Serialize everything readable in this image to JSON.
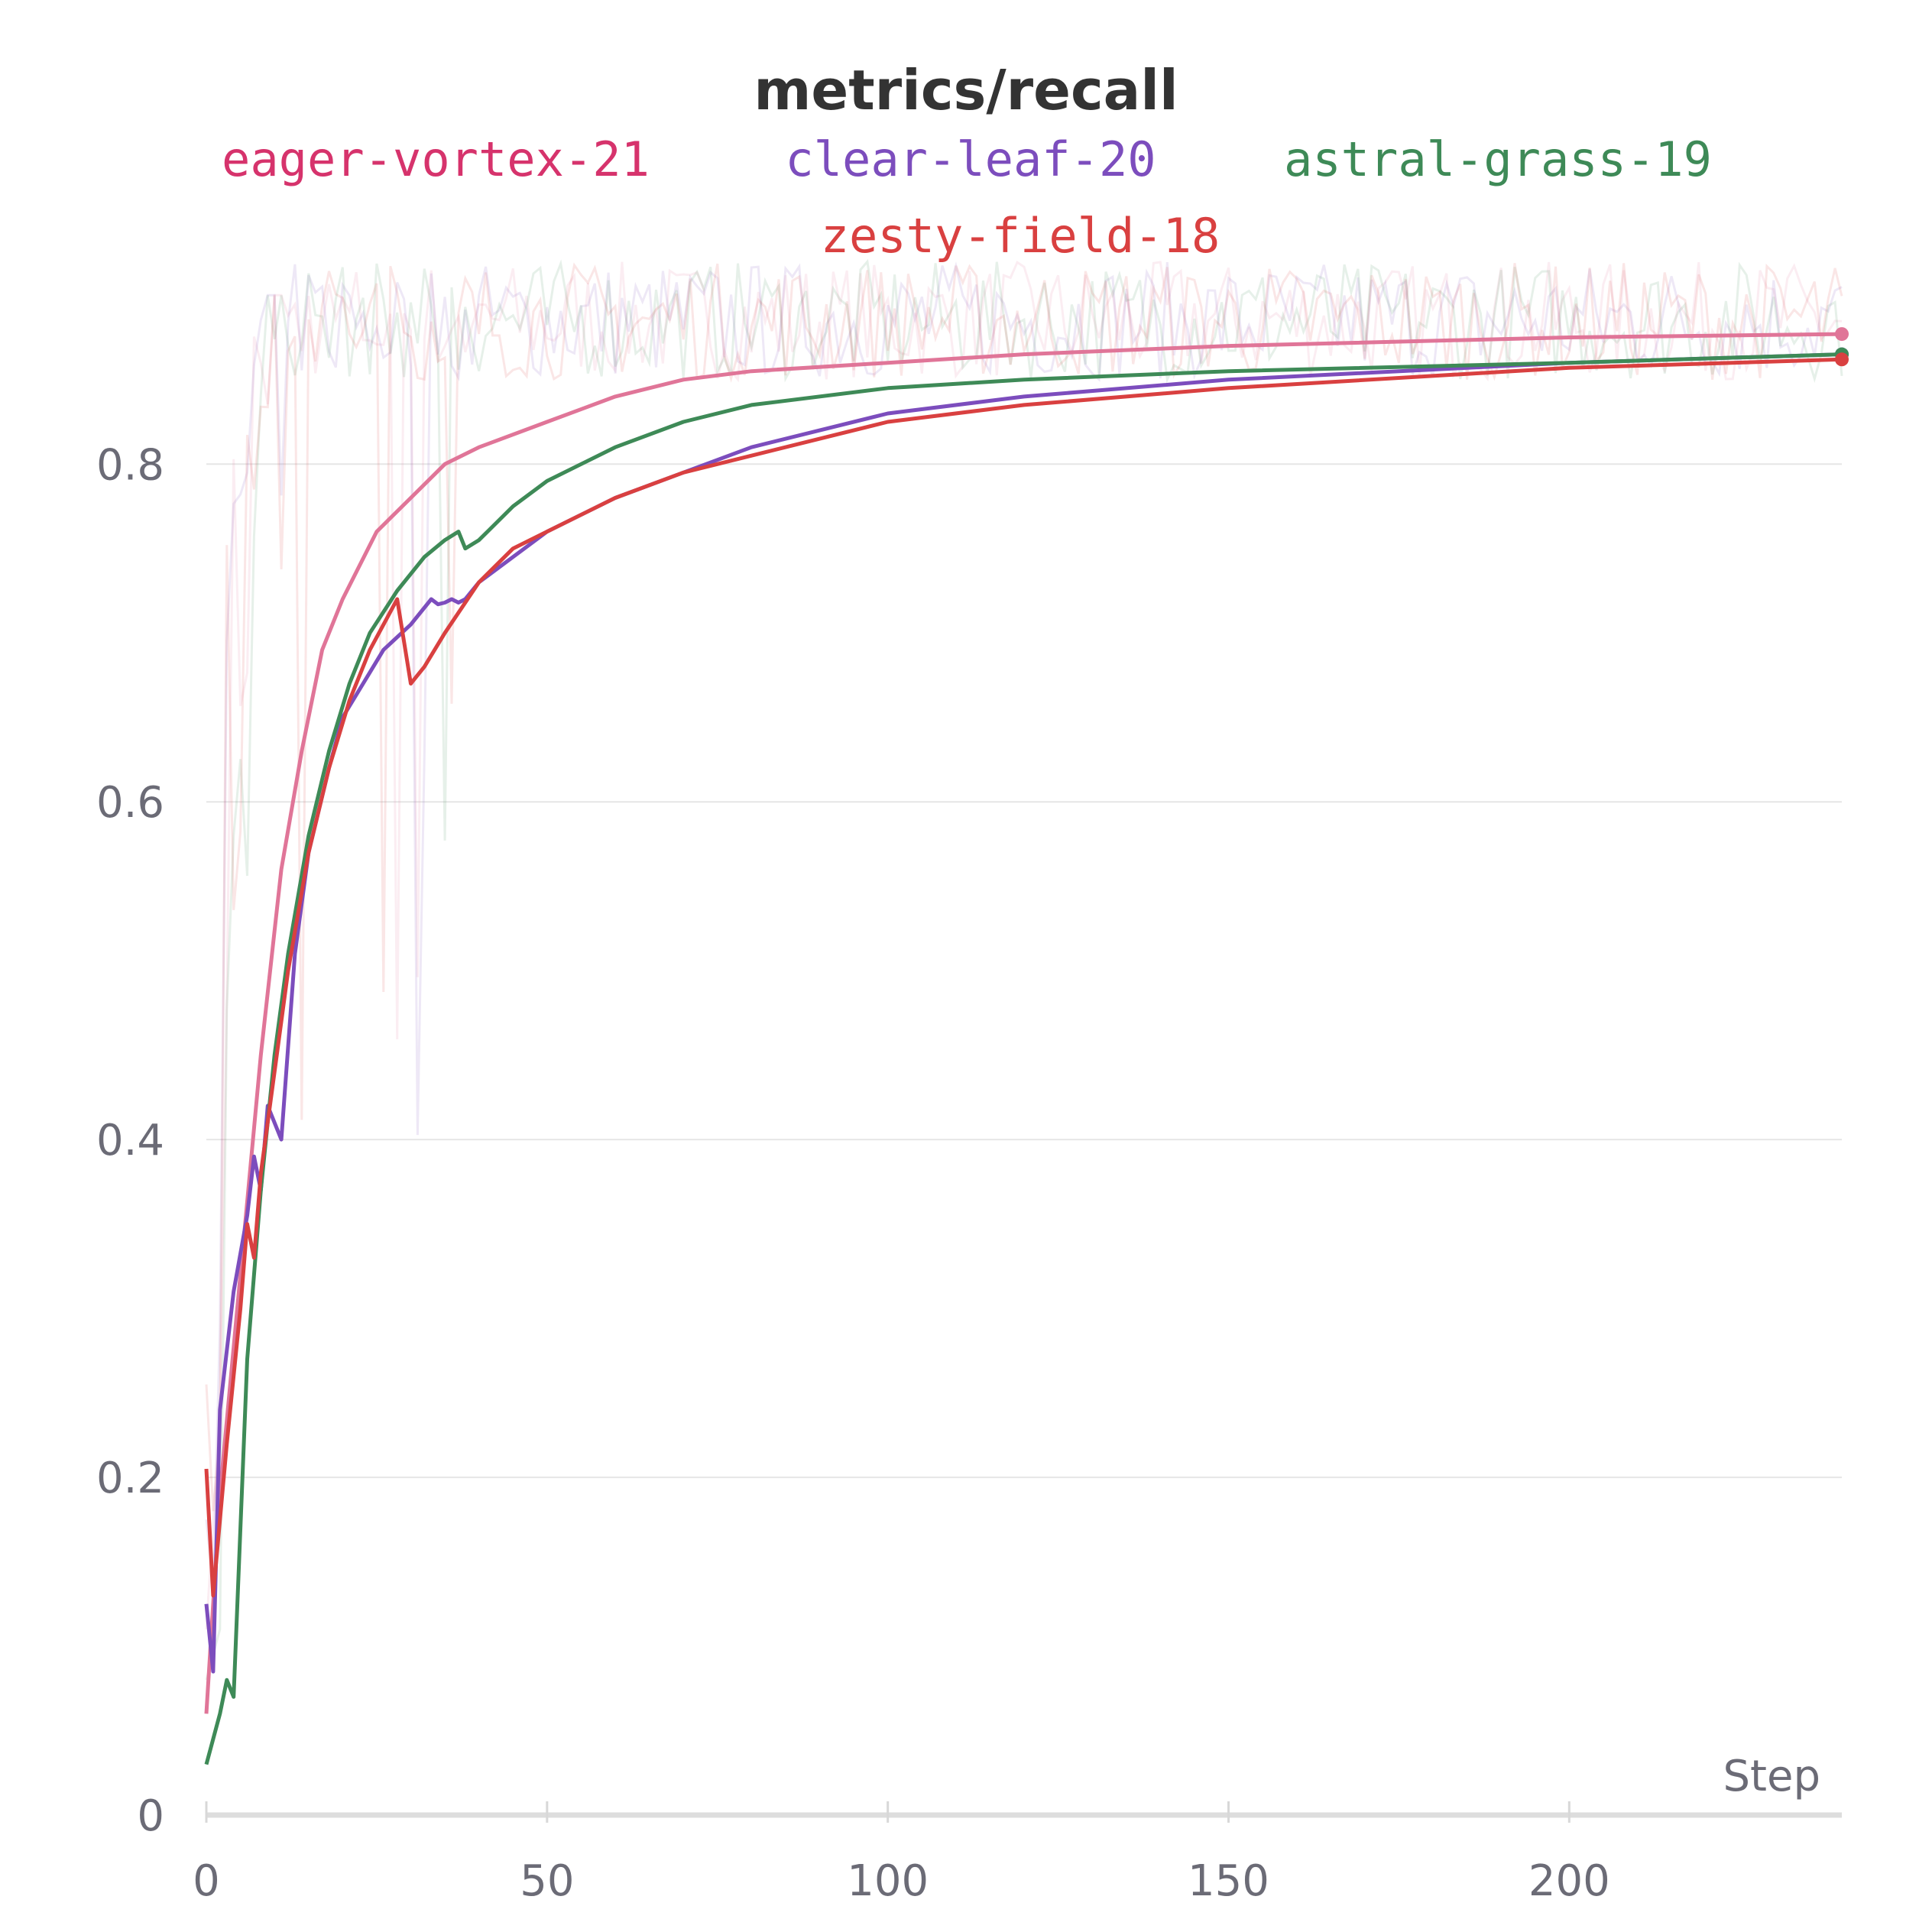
{
  "chart_data": {
    "type": "line",
    "title": "metrics/recall",
    "xlabel": "Step",
    "ylabel": "",
    "xlim": [
      0,
      240
    ],
    "ylim": [
      0,
      0.93
    ],
    "x_ticks": [
      0,
      50,
      100,
      150,
      200
    ],
    "y_ticks": [
      0,
      0.2,
      0.4,
      0.6,
      0.8
    ],
    "y_tick_labels": [
      "0",
      "0.2",
      "0.4",
      "0.6",
      "0.8"
    ],
    "grid": true,
    "legend_position": "top",
    "series": [
      {
        "name": "eager-vortex-21",
        "color": "#d6336c",
        "line_color": "#e07598",
        "x": [
          0,
          2,
          5,
          8,
          11,
          14,
          17,
          20,
          25,
          30,
          35,
          40,
          50,
          60,
          70,
          80,
          100,
          120,
          150,
          200,
          240
        ],
        "values": [
          0.06,
          0.19,
          0.32,
          0.45,
          0.56,
          0.63,
          0.69,
          0.72,
          0.76,
          0.78,
          0.8,
          0.81,
          0.825,
          0.84,
          0.85,
          0.855,
          0.86,
          0.865,
          0.87,
          0.875,
          0.877
        ]
      },
      {
        "name": "clear-leaf-20",
        "color": "#7c4dbd",
        "line_color": "#7c4dbd",
        "x": [
          0,
          1,
          2,
          4,
          6,
          7,
          8,
          9,
          11,
          13,
          15,
          18,
          20,
          23,
          26,
          30,
          33,
          34,
          35,
          36,
          37,
          38,
          40,
          45,
          50,
          60,
          70,
          80,
          100,
          120,
          150,
          200,
          240
        ],
        "values": [
          0.125,
          0.085,
          0.24,
          0.31,
          0.355,
          0.39,
          0.37,
          0.42,
          0.4,
          0.51,
          0.57,
          0.62,
          0.65,
          0.67,
          0.69,
          0.705,
          0.72,
          0.717,
          0.718,
          0.72,
          0.718,
          0.72,
          0.73,
          0.745,
          0.76,
          0.78,
          0.795,
          0.81,
          0.83,
          0.84,
          0.85,
          0.86,
          0.865
        ]
      },
      {
        "name": "astral-grass-19",
        "color": "#3e8a57",
        "line_color": "#3e8a57",
        "x": [
          0,
          2,
          3,
          4,
          6,
          8,
          10,
          12,
          15,
          18,
          21,
          24,
          28,
          32,
          35,
          37,
          38,
          40,
          45,
          50,
          60,
          70,
          80,
          100,
          120,
          150,
          200,
          240
        ],
        "values": [
          0.03,
          0.06,
          0.08,
          0.07,
          0.27,
          0.37,
          0.45,
          0.51,
          0.58,
          0.63,
          0.67,
          0.7,
          0.725,
          0.745,
          0.755,
          0.76,
          0.75,
          0.755,
          0.775,
          0.79,
          0.81,
          0.825,
          0.835,
          0.845,
          0.85,
          0.855,
          0.86,
          0.865
        ]
      },
      {
        "name": "zesty-field-18",
        "color": "#d94040",
        "line_color": "#d94040",
        "x": [
          0,
          1,
          3,
          5,
          6,
          7,
          8,
          10,
          12,
          15,
          18,
          21,
          24,
          28,
          30,
          32,
          35,
          40,
          45,
          50,
          60,
          70,
          80,
          100,
          120,
          150,
          200,
          240
        ],
        "values": [
          0.205,
          0.13,
          0.22,
          0.3,
          0.35,
          0.33,
          0.38,
          0.44,
          0.5,
          0.57,
          0.62,
          0.66,
          0.69,
          0.72,
          0.67,
          0.68,
          0.7,
          0.73,
          0.75,
          0.76,
          0.78,
          0.795,
          0.805,
          0.825,
          0.835,
          0.845,
          0.857,
          0.862
        ]
      }
    ]
  }
}
